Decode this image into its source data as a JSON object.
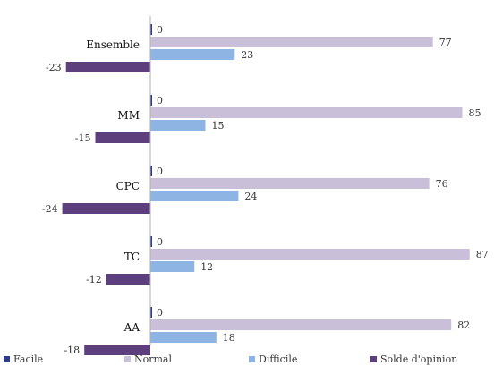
{
  "chart_data": {
    "type": "bar",
    "orientation": "horizontal",
    "categories": [
      "Ensemble",
      "MM",
      "CPC",
      "TC",
      "AA"
    ],
    "series": [
      {
        "name": "Facile",
        "values": [
          0,
          0,
          0,
          0,
          0
        ],
        "color": "#2e3a8c"
      },
      {
        "name": "Normal",
        "values": [
          77,
          85,
          76,
          87,
          82
        ],
        "color": "#c9bfd8"
      },
      {
        "name": "Difficile",
        "values": [
          23,
          15,
          24,
          12,
          18
        ],
        "color": "#8db4e2"
      },
      {
        "name": "Solde d'opinion",
        "values": [
          -23,
          -15,
          -24,
          -12,
          -18
        ],
        "color": "#5d3f7e"
      }
    ],
    "xlim": [
      -30,
      88
    ],
    "grid": false,
    "legend_position": "bottom"
  }
}
